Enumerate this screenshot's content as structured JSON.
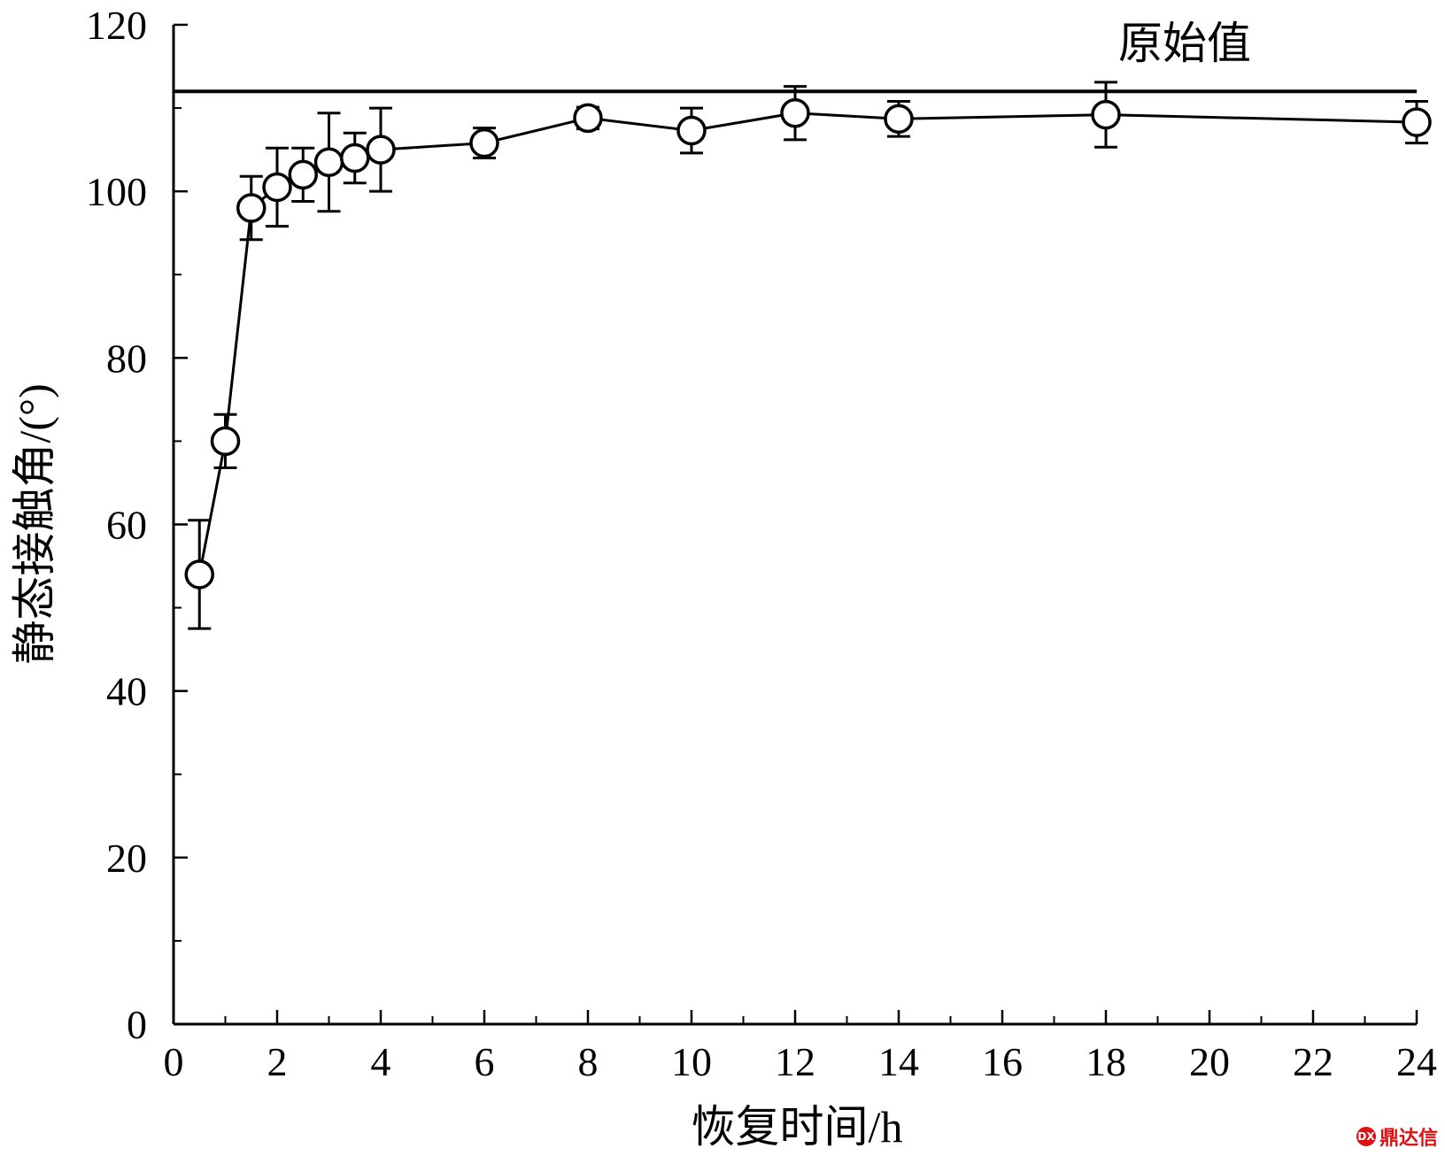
{
  "chart_data": {
    "type": "scatter",
    "xlabel": "恢复时间/h",
    "ylabel": "静态接触角/(°)",
    "xlim": [
      0,
      24
    ],
    "ylim": [
      0,
      120
    ],
    "x_ticks": [
      "0",
      "2",
      "4",
      "6",
      "8",
      "10",
      "12",
      "14",
      "16",
      "18",
      "20",
      "22",
      "24"
    ],
    "y_ticks": [
      "0",
      "20",
      "40",
      "60",
      "80",
      "100",
      "120"
    ],
    "grid": false,
    "reference_line": {
      "label": "原始值",
      "y": 112
    },
    "series": [
      {
        "marker": "open-circle",
        "connected": true,
        "points": [
          {
            "x": 0.5,
            "y": 54.0,
            "err": 6.5
          },
          {
            "x": 1.0,
            "y": 70.0,
            "err": 3.2
          },
          {
            "x": 1.5,
            "y": 98.0,
            "err": 3.8
          },
          {
            "x": 2.0,
            "y": 100.5,
            "err": 4.7
          },
          {
            "x": 2.5,
            "y": 102.0,
            "err": 3.2
          },
          {
            "x": 3.0,
            "y": 103.5,
            "err": 5.9
          },
          {
            "x": 3.5,
            "y": 104.0,
            "err": 3.0
          },
          {
            "x": 4.0,
            "y": 105.0,
            "err": 5.0
          },
          {
            "x": 6.0,
            "y": 105.8,
            "err": 1.8
          },
          {
            "x": 8.0,
            "y": 108.8,
            "err": 1.3
          },
          {
            "x": 10.0,
            "y": 107.3,
            "err": 2.7
          },
          {
            "x": 12.0,
            "y": 109.4,
            "err": 3.2
          },
          {
            "x": 14.0,
            "y": 108.7,
            "err": 2.1
          },
          {
            "x": 18.0,
            "y": 109.2,
            "err": 3.9
          },
          {
            "x": 24.0,
            "y": 108.3,
            "err": 2.5
          }
        ]
      }
    ]
  },
  "watermark": {
    "logo_text": "DX",
    "text": "鼎达信"
  }
}
